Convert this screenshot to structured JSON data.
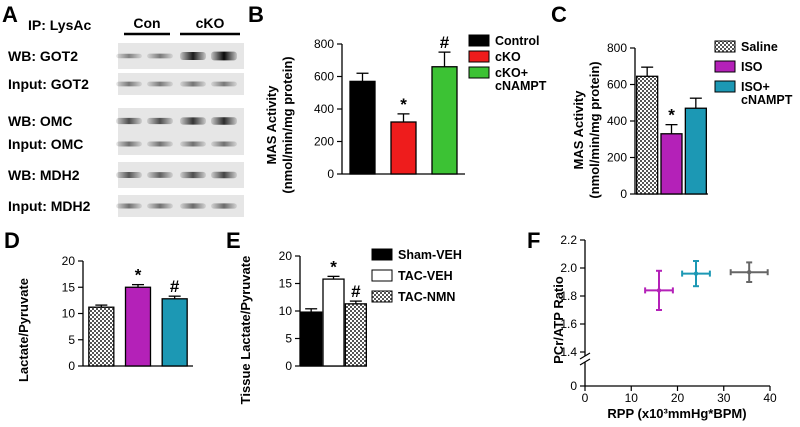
{
  "panelA": {
    "letter": "A",
    "ip_label": "IP: LysAc",
    "group_labels": [
      "Con",
      "cKO"
    ],
    "blots": [
      {
        "label": "WB: GOT2",
        "intensities": [
          0.25,
          0.3,
          0.85,
          0.95
        ]
      },
      {
        "label": "Input: GOT2",
        "intensities": [
          0.3,
          0.3,
          0.32,
          0.3
        ]
      },
      {
        "label": "WB: OMC",
        "intensities": [
          0.55,
          0.55,
          0.7,
          0.75
        ]
      },
      {
        "label": "Input: OMC",
        "intensities": [
          0.35,
          0.35,
          0.35,
          0.35
        ]
      },
      {
        "label": "WB: MDH2",
        "intensities": [
          0.5,
          0.45,
          0.55,
          0.6
        ]
      },
      {
        "label": "Input: MDH2",
        "intensities": [
          0.35,
          0.35,
          0.38,
          0.38
        ]
      }
    ]
  },
  "chart_data": [
    {
      "id": "B",
      "letter": "B",
      "type": "bar",
      "ylabel": "MAS Activity",
      "ylabel2": "(nmol/min/mg protein)",
      "ylim": [
        0,
        800
      ],
      "yticks": [
        0,
        200,
        400,
        600,
        800
      ],
      "categories": [
        "Control",
        "cKO",
        "cKO+ cNAMPT"
      ],
      "values": [
        570,
        320,
        660
      ],
      "errors": [
        50,
        50,
        90
      ],
      "annotations": [
        "",
        "*",
        "#"
      ],
      "colors": [
        "#000000",
        "#ee1c1c",
        "#3cc234"
      ],
      "patterns": [
        "solid",
        "solid",
        "solid"
      ],
      "legend": [
        "Control",
        "cKO",
        "cKO+",
        "cNAMPT"
      ]
    },
    {
      "id": "C",
      "letter": "C",
      "type": "bar",
      "ylabel": "MAS Activity",
      "ylabel2": "(nmol/min/mg protein)",
      "ylim": [
        0,
        800
      ],
      "yticks": [
        0,
        200,
        400,
        600,
        800
      ],
      "categories": [
        "Saline",
        "ISO",
        "ISO+ cNAMPT"
      ],
      "values": [
        645,
        330,
        470
      ],
      "errors": [
        50,
        50,
        55
      ],
      "annotations": [
        "",
        "*",
        ""
      ],
      "colors": [
        "#777777",
        "#b421b8",
        "#1c98b4"
      ],
      "patterns": [
        "hatch",
        "solid",
        "solid"
      ],
      "legend": [
        "Saline",
        "ISO",
        "ISO+",
        "cNAMPT"
      ]
    },
    {
      "id": "D",
      "letter": "D",
      "type": "bar",
      "ylabel": "Lactate/Pyruvate",
      "ylim": [
        0,
        20
      ],
      "yticks": [
        0,
        5,
        10,
        15,
        20
      ],
      "categories": [
        "Saline",
        "ISO",
        "ISO+ cNAMPT"
      ],
      "values": [
        11.2,
        15.0,
        12.8
      ],
      "errors": [
        0.4,
        0.5,
        0.5
      ],
      "annotations": [
        "",
        "*",
        "#"
      ],
      "colors": [
        "#777777",
        "#b421b8",
        "#1c98b4"
      ],
      "patterns": [
        "hatch",
        "solid",
        "solid"
      ]
    },
    {
      "id": "E",
      "letter": "E",
      "type": "bar",
      "ylabel": "Tissue Lactate/Pyruvate",
      "ylim": [
        0,
        20
      ],
      "yticks": [
        0,
        5,
        10,
        15,
        20
      ],
      "categories": [
        "Sham-VEH",
        "TAC-VEH",
        "TAC-NMN"
      ],
      "values": [
        9.8,
        15.8,
        11.3
      ],
      "errors": [
        0.6,
        0.5,
        0.5
      ],
      "annotations": [
        "",
        "*",
        "#"
      ],
      "colors": [
        "#000000",
        "#ffffff",
        "#777777"
      ],
      "patterns": [
        "solid",
        "solid",
        "hatch"
      ],
      "legend": [
        "Sham-VEH",
        "TAC-VEH",
        "TAC-NMN"
      ]
    },
    {
      "id": "F",
      "letter": "F",
      "type": "scatter",
      "ylabel": "PCr/ATP Ratio",
      "xlabel": "RPP (x10³mmHg*BPM)",
      "xlim": [
        0,
        40
      ],
      "xticks": [
        0,
        10,
        20,
        30,
        40
      ],
      "yticks": [
        "0",
        "1.4",
        "1.6",
        "1.8",
        "2.0",
        "2.2"
      ],
      "y_axis_break": true,
      "points": [
        {
          "x": 16,
          "y": 1.84,
          "xerr": 3,
          "yerr": 0.14,
          "color": "#b421b8"
        },
        {
          "x": 24,
          "y": 1.96,
          "xerr": 3,
          "yerr": 0.09,
          "color": "#1c98b4"
        },
        {
          "x": 35.5,
          "y": 1.97,
          "xerr": 4,
          "yerr": 0.07,
          "color": "#666666"
        }
      ]
    }
  ]
}
